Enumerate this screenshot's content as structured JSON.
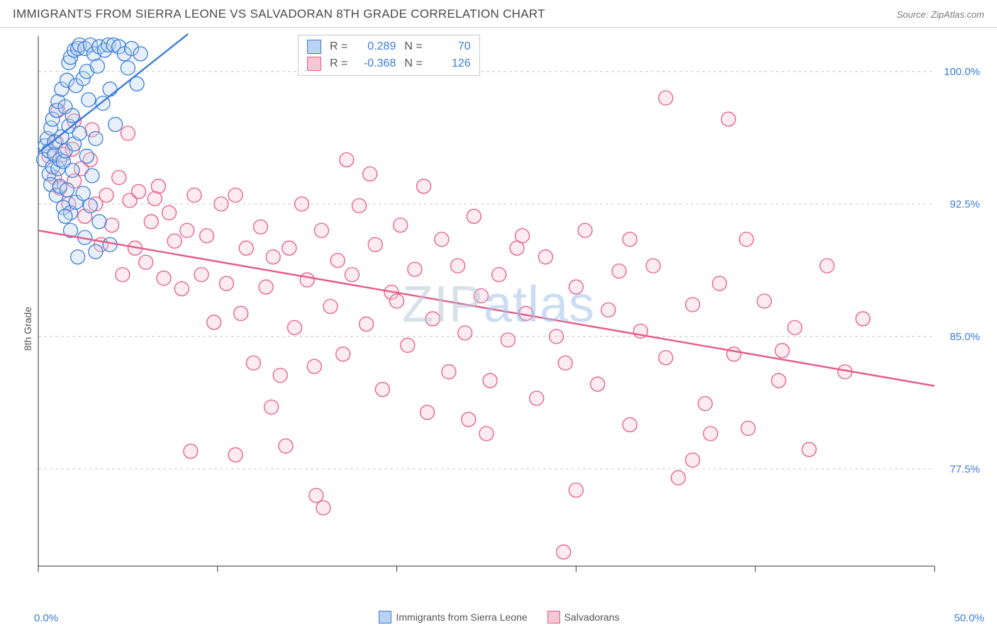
{
  "header": {
    "title": "IMMIGRANTS FROM SIERRA LEONE VS SALVADORAN 8TH GRADE CORRELATION CHART",
    "source": "Source: ZipAtlas.com"
  },
  "chart": {
    "type": "scatter",
    "ylabel": "8th Grade",
    "xlim": [
      0,
      50
    ],
    "ylim": [
      72,
      102
    ],
    "xlim_labels": [
      "0.0%",
      "50.0%"
    ],
    "xtick_positions": [
      0,
      10,
      20,
      30,
      40,
      50
    ],
    "yticks": [
      77.5,
      85.0,
      92.5,
      100.0
    ],
    "ytick_labels": [
      "77.5%",
      "85.0%",
      "92.5%",
      "100.0%"
    ],
    "grid_color": "#c8c8c8",
    "axis_color": "#333333",
    "background_color": "#ffffff",
    "marker_radius": 10,
    "marker_fill_opacity": 0.35,
    "marker_stroke_width": 1.3,
    "watermark": "ZIPatlas",
    "stats": [
      {
        "swatch_fill": "#b9d3f2",
        "swatch_stroke": "#3b7dd8",
        "r_label": "R =",
        "r_value": "0.289",
        "n_label": "N =",
        "n_value": "70"
      },
      {
        "swatch_fill": "#f6c6d5",
        "swatch_stroke": "#e55a87",
        "r_label": "R =",
        "r_value": "-0.368",
        "n_label": "N =",
        "n_value": "126"
      }
    ],
    "legend": [
      {
        "swatch_fill": "#b9d3f2",
        "swatch_stroke": "#3b7dd8",
        "label": "Immigrants from Sierra Leone"
      },
      {
        "swatch_fill": "#f6c6d5",
        "swatch_stroke": "#e55a87",
        "label": "Salvadorans"
      }
    ],
    "series": [
      {
        "name": "Immigrants from Sierra Leone",
        "color_fill": "#b9d3f2",
        "color_stroke": "#3b7dd8",
        "trend": {
          "x1": 0,
          "y1": 95.4,
          "x2": 8.2,
          "y2": 102,
          "dash_x2": 10.5,
          "dash_y2": 104
        },
        "points": [
          [
            0.3,
            95.0
          ],
          [
            0.4,
            95.8
          ],
          [
            0.5,
            96.2
          ],
          [
            0.6,
            94.2
          ],
          [
            0.6,
            95.5
          ],
          [
            0.7,
            96.8
          ],
          [
            0.7,
            93.6
          ],
          [
            0.8,
            97.3
          ],
          [
            0.8,
            94.6
          ],
          [
            0.9,
            95.3
          ],
          [
            0.9,
            96.0
          ],
          [
            1.0,
            97.8
          ],
          [
            1.0,
            93.0
          ],
          [
            1.1,
            94.5
          ],
          [
            1.1,
            98.3
          ],
          [
            1.2,
            95.0
          ],
          [
            1.2,
            93.5
          ],
          [
            1.3,
            96.3
          ],
          [
            1.3,
            99.0
          ],
          [
            1.4,
            92.3
          ],
          [
            1.4,
            94.9
          ],
          [
            1.5,
            98.0
          ],
          [
            1.5,
            95.5
          ],
          [
            1.6,
            99.5
          ],
          [
            1.6,
            93.3
          ],
          [
            1.7,
            100.5
          ],
          [
            1.7,
            96.9
          ],
          [
            1.8,
            92.0
          ],
          [
            1.8,
            100.8
          ],
          [
            1.9,
            97.5
          ],
          [
            1.9,
            94.4
          ],
          [
            2.0,
            101.2
          ],
          [
            2.0,
            95.9
          ],
          [
            2.1,
            99.2
          ],
          [
            2.1,
            92.6
          ],
          [
            2.2,
            101.3
          ],
          [
            2.3,
            96.5
          ],
          [
            2.3,
            101.5
          ],
          [
            2.5,
            99.6
          ],
          [
            2.5,
            93.1
          ],
          [
            2.6,
            101.3
          ],
          [
            2.7,
            95.2
          ],
          [
            2.7,
            100.0
          ],
          [
            2.8,
            98.4
          ],
          [
            2.9,
            101.5
          ],
          [
            3.0,
            94.1
          ],
          [
            3.1,
            101.0
          ],
          [
            3.2,
            96.2
          ],
          [
            3.3,
            100.3
          ],
          [
            3.4,
            101.4
          ],
          [
            3.6,
            98.2
          ],
          [
            3.7,
            101.2
          ],
          [
            3.9,
            101.5
          ],
          [
            4.0,
            99.0
          ],
          [
            4.2,
            101.5
          ],
          [
            4.3,
            97.0
          ],
          [
            4.5,
            101.4
          ],
          [
            4.8,
            101.0
          ],
          [
            5.0,
            100.2
          ],
          [
            5.2,
            101.3
          ],
          [
            5.5,
            99.3
          ],
          [
            5.7,
            101.0
          ],
          [
            4.0,
            90.2
          ],
          [
            3.4,
            91.5
          ],
          [
            2.6,
            90.6
          ],
          [
            1.8,
            91.0
          ],
          [
            2.2,
            89.5
          ],
          [
            2.9,
            92.4
          ],
          [
            1.5,
            91.8
          ],
          [
            3.2,
            89.8
          ]
        ]
      },
      {
        "name": "Salvadorans",
        "color_fill": "#f6c6d5",
        "color_stroke": "#e55a87",
        "trend": {
          "x1": 0,
          "y1": 91.0,
          "x2": 50,
          "y2": 82.2
        },
        "points": [
          [
            0.6,
            95.2
          ],
          [
            0.9,
            94.0
          ],
          [
            1.0,
            96.0
          ],
          [
            1.2,
            93.4
          ],
          [
            1.4,
            95.3
          ],
          [
            1.7,
            92.5
          ],
          [
            1.9,
            95.6
          ],
          [
            2.0,
            93.8
          ],
          [
            2.4,
            94.5
          ],
          [
            2.6,
            91.8
          ],
          [
            2.9,
            95.0
          ],
          [
            3.2,
            92.5
          ],
          [
            3.5,
            90.2
          ],
          [
            3.8,
            93.0
          ],
          [
            4.1,
            91.3
          ],
          [
            4.5,
            94.0
          ],
          [
            4.7,
            88.5
          ],
          [
            5.1,
            92.7
          ],
          [
            5.4,
            90.0
          ],
          [
            5.6,
            93.2
          ],
          [
            6.0,
            89.2
          ],
          [
            6.3,
            91.5
          ],
          [
            6.7,
            93.5
          ],
          [
            7.0,
            88.3
          ],
          [
            7.3,
            92.0
          ],
          [
            7.6,
            90.4
          ],
          [
            8.0,
            87.7
          ],
          [
            8.3,
            91.0
          ],
          [
            8.7,
            93.0
          ],
          [
            9.1,
            88.5
          ],
          [
            9.4,
            90.7
          ],
          [
            9.8,
            85.8
          ],
          [
            10.2,
            92.5
          ],
          [
            10.5,
            88.0
          ],
          [
            11.0,
            93.0
          ],
          [
            11.3,
            86.3
          ],
          [
            11.6,
            90.0
          ],
          [
            12.0,
            83.5
          ],
          [
            12.4,
            91.2
          ],
          [
            12.7,
            87.8
          ],
          [
            13.1,
            89.5
          ],
          [
            13.5,
            82.8
          ],
          [
            14.0,
            90.0
          ],
          [
            14.3,
            85.5
          ],
          [
            14.7,
            92.5
          ],
          [
            15.0,
            88.2
          ],
          [
            15.4,
            83.3
          ],
          [
            15.8,
            91.0
          ],
          [
            16.3,
            86.7
          ],
          [
            16.7,
            89.3
          ],
          [
            17.0,
            84.0
          ],
          [
            17.5,
            88.5
          ],
          [
            17.9,
            92.4
          ],
          [
            18.3,
            85.7
          ],
          [
            18.8,
            90.2
          ],
          [
            19.2,
            82.0
          ],
          [
            19.7,
            87.5
          ],
          [
            20.2,
            91.3
          ],
          [
            20.6,
            84.5
          ],
          [
            21.0,
            88.8
          ],
          [
            21.5,
            93.5
          ],
          [
            22.0,
            86.0
          ],
          [
            22.5,
            90.5
          ],
          [
            22.9,
            83.0
          ],
          [
            23.4,
            89.0
          ],
          [
            23.8,
            85.2
          ],
          [
            24.3,
            91.8
          ],
          [
            24.7,
            87.3
          ],
          [
            25.2,
            82.5
          ],
          [
            25.7,
            88.5
          ],
          [
            26.2,
            84.8
          ],
          [
            26.7,
            90.0
          ],
          [
            27.2,
            86.3
          ],
          [
            27.8,
            81.5
          ],
          [
            28.3,
            89.5
          ],
          [
            28.9,
            85.0
          ],
          [
            29.4,
            83.5
          ],
          [
            30.0,
            87.8
          ],
          [
            30.5,
            91.0
          ],
          [
            31.2,
            82.3
          ],
          [
            31.8,
            86.5
          ],
          [
            32.4,
            88.7
          ],
          [
            33.0,
            80.0
          ],
          [
            33.6,
            85.3
          ],
          [
            34.3,
            89.0
          ],
          [
            35.0,
            83.8
          ],
          [
            35.7,
            77.0
          ],
          [
            36.5,
            86.8
          ],
          [
            37.2,
            81.2
          ],
          [
            38.0,
            88.0
          ],
          [
            38.8,
            84.0
          ],
          [
            39.6,
            79.8
          ],
          [
            40.5,
            87.0
          ],
          [
            41.3,
            82.5
          ],
          [
            42.2,
            85.5
          ],
          [
            43.0,
            78.6
          ],
          [
            44.0,
            89.0
          ],
          [
            45.0,
            83.0
          ],
          [
            46.0,
            86.0
          ],
          [
            35.0,
            98.5
          ],
          [
            38.5,
            97.3
          ],
          [
            30.0,
            76.3
          ],
          [
            29.3,
            72.8
          ],
          [
            15.5,
            76.0
          ],
          [
            15.9,
            75.3
          ],
          [
            11.0,
            78.3
          ],
          [
            13.8,
            78.8
          ],
          [
            13.0,
            81.0
          ],
          [
            24.0,
            80.3
          ],
          [
            25.0,
            79.5
          ],
          [
            36.5,
            78.0
          ],
          [
            37.5,
            79.5
          ],
          [
            8.5,
            78.5
          ],
          [
            6.5,
            92.8
          ],
          [
            5.0,
            96.5
          ],
          [
            3.0,
            96.7
          ],
          [
            2.0,
            97.2
          ],
          [
            1.1,
            97.8
          ],
          [
            17.2,
            95.0
          ],
          [
            18.5,
            94.2
          ],
          [
            20.0,
            87.0
          ],
          [
            21.7,
            80.7
          ],
          [
            27.0,
            90.7
          ],
          [
            33.0,
            90.5
          ],
          [
            39.5,
            90.5
          ],
          [
            41.5,
            84.2
          ]
        ]
      }
    ]
  }
}
